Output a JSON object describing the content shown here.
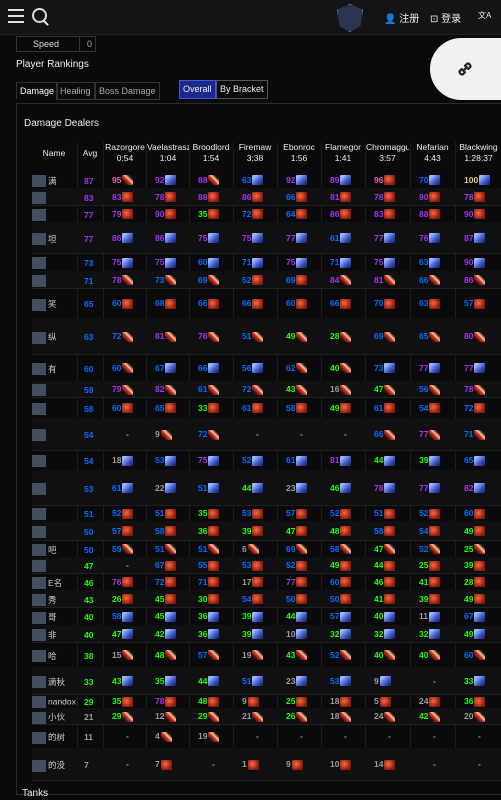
{
  "nav": {
    "register": "注册",
    "login": "登录",
    "lang": "文A"
  },
  "speed": {
    "label": "Speed",
    "value": "0"
  },
  "rankings_title": "Player Rankings",
  "tabs": [
    "Damage",
    "Healing",
    "Boss Damage"
  ],
  "brackets": [
    "Overall",
    "By Bracket"
  ],
  "damage_title": "Damage Dealers",
  "tanks_title": "Tanks",
  "columns": [
    {
      "name": "Name",
      "time": ""
    },
    {
      "name": "Avg",
      "time": ""
    },
    {
      "name": "Razorgore",
      "time": "0:54"
    },
    {
      "name": "Vaelastrasz",
      "time": "1:04"
    },
    {
      "name": "Broodlord",
      "time": "1:54"
    },
    {
      "name": "Firemaw",
      "time": "3:38"
    },
    {
      "name": "Ebonroc",
      "time": "1:56"
    },
    {
      "name": "Flamegor",
      "time": "1:41"
    },
    {
      "name": "Chromaggus",
      "time": "3:57"
    },
    {
      "name": "Nefarian",
      "time": "4:43"
    },
    {
      "name": "Blackwing",
      "time": "1:28:37"
    }
  ],
  "rows": [
    {
      "name": "满",
      "avg": "87",
      "cells": [
        [
          "95",
          "claw"
        ],
        [
          "92",
          "blade"
        ],
        [
          "88",
          "claw"
        ],
        [
          "63",
          "blade"
        ],
        [
          "92",
          "blade"
        ],
        [
          "89",
          "blade"
        ],
        [
          "96",
          "shield"
        ],
        [
          "70",
          "blade"
        ],
        [
          "100",
          "blade"
        ]
      ]
    },
    {
      "name": "",
      "avg": "83",
      "cells": [
        [
          "83",
          "shield"
        ],
        [
          "78",
          "shield"
        ],
        [
          "88",
          "shield"
        ],
        [
          "86",
          "shield"
        ],
        [
          "66",
          "shield"
        ],
        [
          "81",
          "shield"
        ],
        [
          "78",
          "shield"
        ],
        [
          "90",
          "shield"
        ],
        [
          "78",
          "shield"
        ]
      ]
    },
    {
      "name": "",
      "avg": "77",
      "cells": [
        [
          "79",
          "shield"
        ],
        [
          "90",
          "shield"
        ],
        [
          "35",
          "shield"
        ],
        [
          "72",
          "shield"
        ],
        [
          "64",
          "shield"
        ],
        [
          "86",
          "shield"
        ],
        [
          "83",
          "shield"
        ],
        [
          "88",
          "shield"
        ],
        [
          "90",
          "shield"
        ]
      ]
    },
    {
      "name": "坦",
      "avg": "77",
      "cells": [
        [
          "86",
          "blade"
        ],
        [
          "86",
          "blade"
        ],
        [
          "75",
          "blade"
        ],
        [
          "75",
          "blade"
        ],
        [
          "77",
          "blade"
        ],
        [
          "61",
          "blade"
        ],
        [
          "77",
          "blade"
        ],
        [
          "76",
          "blade"
        ],
        [
          "87",
          "blade"
        ]
      ]
    },
    {
      "name": "",
      "avg": "73",
      "cells": [
        [
          "75",
          "blade"
        ],
        [
          "75",
          "blade"
        ],
        [
          "60",
          "blade"
        ],
        [
          "71",
          "blade"
        ],
        [
          "75",
          "blade"
        ],
        [
          "71",
          "blade"
        ],
        [
          "75",
          "blade"
        ],
        [
          "63",
          "blade"
        ],
        [
          "90",
          "blade"
        ]
      ]
    },
    {
      "name": "",
      "avg": "71",
      "cells": [
        [
          "78",
          "claw"
        ],
        [
          "73",
          "claw"
        ],
        [
          "69",
          "claw"
        ],
        [
          "52",
          "shield"
        ],
        [
          "69",
          "shield"
        ],
        [
          "84",
          "claw"
        ],
        [
          "81",
          "claw"
        ],
        [
          "66",
          "claw"
        ],
        [
          "86",
          "claw"
        ]
      ]
    },
    {
      "name": "笑",
      "avg": "65",
      "cells": [
        [
          "60",
          "shield"
        ],
        [
          "68",
          "shield"
        ],
        [
          "66",
          "shield"
        ],
        [
          "66",
          "shield"
        ],
        [
          "60",
          "shield"
        ],
        [
          "66",
          "shield"
        ],
        [
          "70",
          "shield"
        ],
        [
          "63",
          "shield"
        ],
        [
          "57",
          "shield"
        ]
      ]
    },
    {
      "name": "纵",
      "avg": "63",
      "cells": [
        [
          "72",
          "claw"
        ],
        [
          "81",
          "claw"
        ],
        [
          "76",
          "claw"
        ],
        [
          "51",
          "claw"
        ],
        [
          "49",
          "claw"
        ],
        [
          "28",
          "claw"
        ],
        [
          "69",
          "claw"
        ],
        [
          "65",
          "claw"
        ],
        [
          "80",
          "claw"
        ]
      ]
    },
    {
      "name": "有",
      "avg": "60",
      "cells": [
        [
          "60",
          "claw"
        ],
        [
          "67",
          "blade"
        ],
        [
          "66",
          "blade"
        ],
        [
          "56",
          "blade"
        ],
        [
          "62",
          "claw"
        ],
        [
          "40",
          "claw"
        ],
        [
          "73",
          "blade"
        ],
        [
          "77",
          "blade"
        ],
        [
          "77",
          "blade"
        ]
      ]
    },
    {
      "name": "",
      "avg": "59",
      "cells": [
        [
          "79",
          "claw"
        ],
        [
          "82",
          "claw"
        ],
        [
          "61",
          "claw"
        ],
        [
          "72",
          "claw"
        ],
        [
          "43",
          "claw"
        ],
        [
          "16",
          "claw"
        ],
        [
          "47",
          "claw"
        ],
        [
          "56",
          "claw"
        ],
        [
          "78",
          "claw"
        ]
      ]
    },
    {
      "name": "",
      "avg": "58",
      "cells": [
        [
          "60",
          "shield"
        ],
        [
          "65",
          "shield"
        ],
        [
          "33",
          "shield"
        ],
        [
          "61",
          "shield"
        ],
        [
          "58",
          "shield"
        ],
        [
          "49",
          "shield"
        ],
        [
          "61",
          "shield"
        ],
        [
          "54",
          "shield"
        ],
        [
          "72",
          "shield"
        ]
      ]
    },
    {
      "name": "",
      "avg": "54",
      "cells": [
        [
          "-",
          ""
        ],
        [
          "9",
          "claw"
        ],
        [
          "72",
          "claw"
        ],
        [
          "-",
          ""
        ],
        [
          "-",
          ""
        ],
        [
          "-",
          ""
        ],
        [
          "66",
          "claw"
        ],
        [
          "77",
          "claw"
        ],
        [
          "71",
          "claw"
        ]
      ]
    },
    {
      "name": "",
      "avg": "54",
      "cells": [
        [
          "18",
          "blade"
        ],
        [
          "53",
          "blade"
        ],
        [
          "75",
          "blade"
        ],
        [
          "52",
          "blade"
        ],
        [
          "61",
          "blade"
        ],
        [
          "81",
          "blade"
        ],
        [
          "44",
          "blade"
        ],
        [
          "39",
          "blade"
        ],
        [
          "65",
          "blade"
        ]
      ]
    },
    {
      "name": "",
      "avg": "53",
      "cells": [
        [
          "61",
          "blade"
        ],
        [
          "22",
          "blade"
        ],
        [
          "51",
          "blade"
        ],
        [
          "44",
          "blade"
        ],
        [
          "23",
          "blade"
        ],
        [
          "46",
          "blade"
        ],
        [
          "78",
          "blade"
        ],
        [
          "77",
          "blade"
        ],
        [
          "82",
          "blade"
        ]
      ]
    },
    {
      "name": "",
      "avg": "51",
      "cells": [
        [
          "52",
          "shield"
        ],
        [
          "51",
          "shield"
        ],
        [
          "35",
          "shield"
        ],
        [
          "53",
          "shield"
        ],
        [
          "57",
          "shield"
        ],
        [
          "52",
          "shield"
        ],
        [
          "51",
          "shield"
        ],
        [
          "52",
          "shield"
        ],
        [
          "60",
          "shield"
        ]
      ]
    },
    {
      "name": "",
      "avg": "50",
      "cells": [
        [
          "57",
          "shield"
        ],
        [
          "58",
          "shield"
        ],
        [
          "36",
          "shield"
        ],
        [
          "39",
          "shield"
        ],
        [
          "47",
          "shield"
        ],
        [
          "48",
          "shield"
        ],
        [
          "58",
          "shield"
        ],
        [
          "54",
          "shield"
        ],
        [
          "49",
          "shield"
        ]
      ]
    },
    {
      "name": "吧",
      "avg": "50",
      "cells": [
        [
          "59",
          "claw"
        ],
        [
          "51",
          "claw"
        ],
        [
          "51",
          "claw"
        ],
        [
          "6",
          "claw"
        ],
        [
          "69",
          "claw"
        ],
        [
          "58",
          "claw"
        ],
        [
          "47",
          "claw"
        ],
        [
          "52",
          "claw"
        ],
        [
          "25",
          "claw"
        ]
      ]
    },
    {
      "name": "",
      "avg": "47",
      "cells": [
        [
          "-",
          ""
        ],
        [
          "67",
          "shield"
        ],
        [
          "55",
          "shield"
        ],
        [
          "53",
          "shield"
        ],
        [
          "52",
          "shield"
        ],
        [
          "49",
          "shield"
        ],
        [
          "44",
          "shield"
        ],
        [
          "25",
          "shield"
        ],
        [
          "39",
          "shield"
        ]
      ]
    },
    {
      "name": "E名",
      "avg": "46",
      "cells": [
        [
          "76",
          "shield"
        ],
        [
          "72",
          "shield"
        ],
        [
          "71",
          "shield"
        ],
        [
          "17",
          "shield"
        ],
        [
          "77",
          "shield"
        ],
        [
          "60",
          "shield"
        ],
        [
          "46",
          "shield"
        ],
        [
          "41",
          "shield"
        ],
        [
          "28",
          "shield"
        ]
      ]
    },
    {
      "name": "秀",
      "avg": "43",
      "cells": [
        [
          "26",
          "shield"
        ],
        [
          "45",
          "shield"
        ],
        [
          "30",
          "shield"
        ],
        [
          "54",
          "shield"
        ],
        [
          "50",
          "shield"
        ],
        [
          "50",
          "shield"
        ],
        [
          "41",
          "shield"
        ],
        [
          "39",
          "shield"
        ],
        [
          "49",
          "shield"
        ]
      ]
    },
    {
      "name": "哥",
      "avg": "40",
      "cells": [
        [
          "58",
          "blade"
        ],
        [
          "45",
          "blade"
        ],
        [
          "36",
          "blade"
        ],
        [
          "39",
          "blade"
        ],
        [
          "44",
          "blade"
        ],
        [
          "57",
          "blade"
        ],
        [
          "40",
          "blade"
        ],
        [
          "11",
          "blade"
        ],
        [
          "67",
          "blade"
        ]
      ]
    },
    {
      "name": "非",
      "avg": "40",
      "cells": [
        [
          "47",
          "blade"
        ],
        [
          "42",
          "blade"
        ],
        [
          "36",
          "blade"
        ],
        [
          "39",
          "blade"
        ],
        [
          "10",
          "blade"
        ],
        [
          "32",
          "blade"
        ],
        [
          "32",
          "blade"
        ],
        [
          "32",
          "blade"
        ],
        [
          "49",
          "blade"
        ]
      ]
    },
    {
      "name": "哈",
      "avg": "38",
      "cells": [
        [
          "15",
          "claw"
        ],
        [
          "48",
          "claw"
        ],
        [
          "57",
          "claw"
        ],
        [
          "19",
          "claw"
        ],
        [
          "43",
          "claw"
        ],
        [
          "52",
          "claw"
        ],
        [
          "40",
          "claw"
        ],
        [
          "40",
          "claw"
        ],
        [
          "60",
          "claw"
        ]
      ]
    },
    {
      "name": "滴秋",
      "avg": "33",
      "cells": [
        [
          "43",
          "blade"
        ],
        [
          "35",
          "blade"
        ],
        [
          "44",
          "blade"
        ],
        [
          "51",
          "blade"
        ],
        [
          "23",
          "blade"
        ],
        [
          "53",
          "blade"
        ],
        [
          "9",
          "blade"
        ],
        [
          "-",
          ""
        ],
        [
          "33",
          "blade"
        ]
      ]
    },
    {
      "name": "nandox",
      "avg": "29",
      "cells": [
        [
          "35",
          "shield"
        ],
        [
          "78",
          "shield"
        ],
        [
          "48",
          "shield"
        ],
        [
          "9",
          "shield"
        ],
        [
          "25",
          "shield"
        ],
        [
          "18",
          "shield"
        ],
        [
          "5",
          "shield"
        ],
        [
          "24",
          "shield"
        ],
        [
          "36",
          "shield"
        ]
      ]
    },
    {
      "name": "小伙",
      "avg": "21",
      "cells": [
        [
          "29",
          "claw"
        ],
        [
          "12",
          "claw"
        ],
        [
          "29",
          "claw"
        ],
        [
          "21",
          "claw"
        ],
        [
          "26",
          "claw"
        ],
        [
          "18",
          "claw"
        ],
        [
          "24",
          "claw"
        ],
        [
          "42",
          "claw"
        ],
        [
          "20",
          "claw"
        ]
      ]
    },
    {
      "name": "的树",
      "avg": "11",
      "cells": [
        [
          "-",
          ""
        ],
        [
          "4",
          "claw"
        ],
        [
          "19",
          "claw"
        ],
        [
          "-",
          ""
        ],
        [
          "-",
          ""
        ],
        [
          "-",
          ""
        ],
        [
          "-",
          ""
        ],
        [
          "-",
          ""
        ],
        [
          "-",
          ""
        ]
      ]
    },
    {
      "name": "的没",
      "avg": "7",
      "cells": [
        [
          "-",
          ""
        ],
        [
          "7",
          "shield"
        ],
        [
          "-",
          ""
        ],
        [
          "1",
          "shield"
        ],
        [
          "9",
          "shield"
        ],
        [
          "10",
          "shield"
        ],
        [
          "14",
          "shield"
        ],
        [
          "-",
          ""
        ],
        [
          "-",
          ""
        ]
      ]
    }
  ],
  "colors": {
    "gold": "#e5cc80",
    "orange": "#ff8000",
    "purple": "#a335ee",
    "blue": "#0070ff",
    "green": "#1eff00",
    "grey": "#9d9d9d"
  }
}
